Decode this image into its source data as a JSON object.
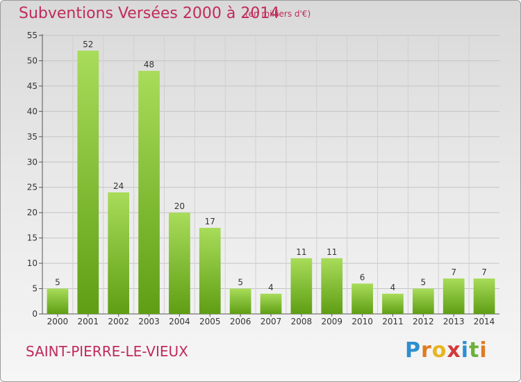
{
  "header": {
    "title": "Subventions Versées 2000 à 2014",
    "unit_note": "(en milliers d'€)"
  },
  "footer": {
    "commune": "SAINT-PIERRE-LE-VIEUX"
  },
  "logo": {
    "text": "Proxiti"
  },
  "colors": {
    "title": "#c02a5a",
    "bar_top": "#a8dc5a",
    "bar_bottom": "#5f9e14"
  },
  "chart_data": {
    "type": "bar",
    "title": "Subventions Versées 2000 à 2014",
    "subtitle": "(en milliers d'€)",
    "xlabel": "",
    "ylabel": "",
    "categories": [
      "2000",
      "2001",
      "2002",
      "2003",
      "2004",
      "2005",
      "2006",
      "2007",
      "2008",
      "2009",
      "2010",
      "2011",
      "2012",
      "2013",
      "2014"
    ],
    "values": [
      5,
      52,
      24,
      48,
      20,
      17,
      5,
      4,
      11,
      11,
      6,
      4,
      5,
      7,
      7
    ],
    "ylim": [
      0,
      55
    ],
    "yticks": [
      0,
      5,
      10,
      15,
      20,
      25,
      30,
      35,
      40,
      45,
      50,
      55
    ],
    "grid": true,
    "data_labels": true
  }
}
